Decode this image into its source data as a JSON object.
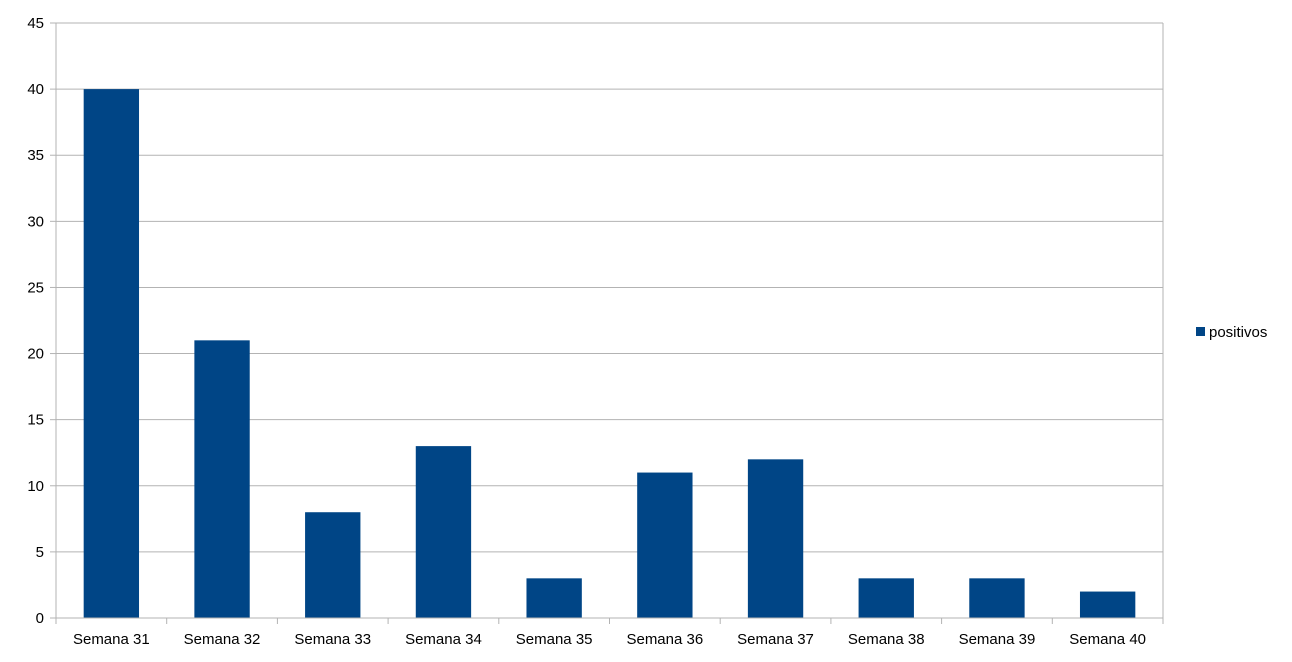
{
  "chart_data": {
    "type": "bar",
    "categories": [
      "Semana 31",
      "Semana 32",
      "Semana 33",
      "Semana 34",
      "Semana 35",
      "Semana 36",
      "Semana 37",
      "Semana 38",
      "Semana 39",
      "Semana 40"
    ],
    "series": [
      {
        "name": "positivos",
        "values": [
          40,
          21,
          8,
          13,
          3,
          11,
          12,
          3,
          3,
          2
        ],
        "color": "#004586"
      }
    ],
    "title": "",
    "xlabel": "",
    "ylabel": "",
    "ylim": [
      0,
      45
    ],
    "yticks": [
      0,
      5,
      10,
      15,
      20,
      25,
      30,
      35,
      40,
      45
    ],
    "grid": true,
    "legend_position": "right"
  }
}
